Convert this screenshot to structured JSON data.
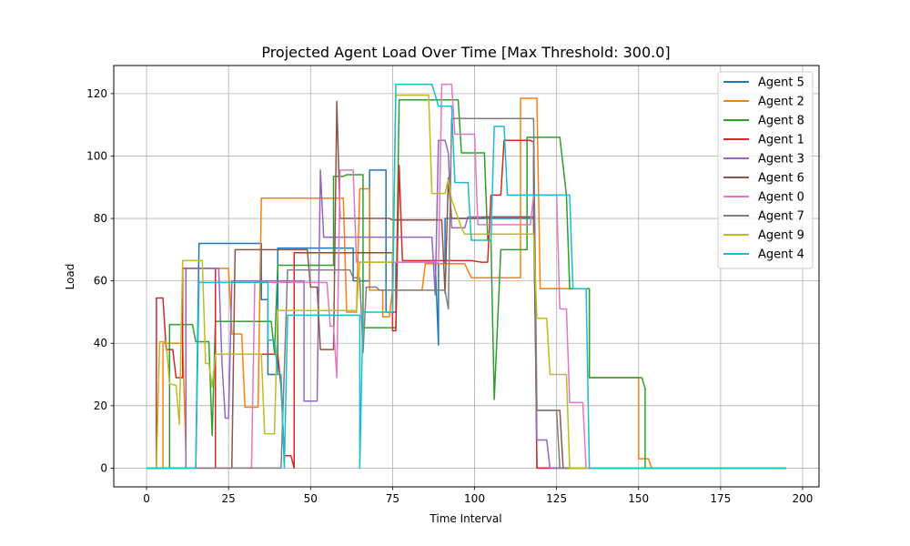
{
  "chart_data": {
    "type": "line",
    "title": "Projected Agent Load Over Time [Max Threshold: 300.0]",
    "xlabel": "Time Interval",
    "ylabel": "Load",
    "xlim": [
      -10,
      205
    ],
    "ylim": [
      -6,
      129
    ],
    "xticks": [
      0,
      25,
      50,
      75,
      100,
      125,
      150,
      175,
      200
    ],
    "yticks": [
      0,
      20,
      40,
      60,
      80,
      100,
      120
    ],
    "grid": true,
    "legend_position": "top-right",
    "series": [
      {
        "name": "Agent 5",
        "color": "#1f77b4",
        "points": [
          [
            0,
            0
          ],
          [
            15,
            0
          ],
          [
            16,
            72
          ],
          [
            35,
            72
          ],
          [
            35,
            54
          ],
          [
            37,
            54
          ],
          [
            37,
            30
          ],
          [
            40,
            30
          ],
          [
            40,
            70.5
          ],
          [
            63,
            70.5
          ],
          [
            63,
            60
          ],
          [
            68,
            60
          ],
          [
            68,
            95.5
          ],
          [
            73,
            95.5
          ],
          [
            73,
            50
          ],
          [
            76,
            50
          ],
          [
            76,
            66
          ],
          [
            88,
            66
          ],
          [
            89,
            39.5
          ],
          [
            89,
            65.5
          ],
          [
            91,
            65.5
          ],
          [
            91,
            80
          ],
          [
            118,
            80
          ],
          [
            118,
            100
          ],
          [
            119,
            0
          ],
          [
            195,
            0
          ]
        ]
      },
      {
        "name": "Agent 2",
        "color": "#ff7f0e",
        "points": [
          [
            0,
            0
          ],
          [
            5,
            0
          ],
          [
            5,
            40
          ],
          [
            11,
            40
          ],
          [
            12,
            5.5
          ],
          [
            12,
            64
          ],
          [
            25,
            64
          ],
          [
            26,
            43
          ],
          [
            29,
            43
          ],
          [
            30,
            19.5
          ],
          [
            34,
            19.5
          ],
          [
            35,
            86.5
          ],
          [
            60,
            86.5
          ],
          [
            61,
            50
          ],
          [
            64,
            50
          ],
          [
            65,
            89.5
          ],
          [
            68,
            89.5
          ],
          [
            68,
            57
          ],
          [
            72,
            57
          ],
          [
            72,
            48.5
          ],
          [
            74,
            48.5
          ],
          [
            75,
            57
          ],
          [
            84,
            57
          ],
          [
            85,
            65.5
          ],
          [
            97,
            65.5
          ],
          [
            99,
            61
          ],
          [
            114,
            61
          ],
          [
            114,
            118.5
          ],
          [
            119,
            118.5
          ],
          [
            120,
            57.5
          ],
          [
            128,
            57.5
          ],
          [
            129,
            57.5
          ],
          [
            135,
            57.5
          ],
          [
            135,
            29
          ],
          [
            150,
            29
          ],
          [
            150,
            3
          ],
          [
            153,
            3
          ],
          [
            154,
            0
          ],
          [
            195,
            0
          ]
        ]
      },
      {
        "name": "Agent 8",
        "color": "#2ca02c",
        "points": [
          [
            0,
            0
          ],
          [
            7,
            0
          ],
          [
            7,
            46
          ],
          [
            14,
            46
          ],
          [
            15,
            40.5
          ],
          [
            19,
            40.5
          ],
          [
            20,
            10.5
          ],
          [
            21,
            47
          ],
          [
            38,
            47
          ],
          [
            39,
            37
          ],
          [
            40,
            65
          ],
          [
            57,
            65
          ],
          [
            57,
            93.5
          ],
          [
            60,
            93.5
          ],
          [
            61,
            94
          ],
          [
            66,
            94
          ],
          [
            66,
            45
          ],
          [
            76,
            45
          ],
          [
            77,
            118
          ],
          [
            95,
            118
          ],
          [
            96,
            101
          ],
          [
            103,
            101
          ],
          [
            104,
            73
          ],
          [
            105,
            73
          ],
          [
            106,
            22
          ],
          [
            108,
            70
          ],
          [
            116,
            70
          ],
          [
            116,
            106
          ],
          [
            126,
            106
          ],
          [
            128,
            87.5
          ],
          [
            129,
            57.5
          ],
          [
            135,
            57.5
          ],
          [
            135,
            29
          ],
          [
            151,
            29
          ],
          [
            152,
            25.5
          ],
          [
            152,
            0
          ],
          [
            195,
            0
          ]
        ]
      },
      {
        "name": "Agent 1",
        "color": "#d62728",
        "points": [
          [
            0,
            0
          ],
          [
            3,
            0
          ],
          [
            3,
            54.5
          ],
          [
            5,
            54.5
          ],
          [
            6,
            38
          ],
          [
            8,
            38
          ],
          [
            9,
            29
          ],
          [
            11,
            29
          ],
          [
            11,
            64
          ],
          [
            21,
            64
          ],
          [
            21,
            0
          ],
          [
            21,
            36.5
          ],
          [
            40,
            36.5
          ],
          [
            41,
            26
          ],
          [
            42,
            4
          ],
          [
            44,
            4
          ],
          [
            45,
            0
          ],
          [
            45,
            69
          ],
          [
            75,
            69
          ],
          [
            75,
            44
          ],
          [
            76,
            44
          ],
          [
            77,
            97
          ],
          [
            78,
            66.5
          ],
          [
            99,
            66.5
          ],
          [
            102,
            66
          ],
          [
            104,
            66
          ],
          [
            105,
            87.5
          ],
          [
            108,
            87.5
          ],
          [
            109,
            105
          ],
          [
            117,
            105
          ],
          [
            118,
            104.5
          ],
          [
            119,
            0
          ],
          [
            195,
            0
          ]
        ]
      },
      {
        "name": "Agent 3",
        "color": "#9467bd",
        "points": [
          [
            0,
            0
          ],
          [
            12,
            0
          ],
          [
            12,
            64
          ],
          [
            22,
            64
          ],
          [
            23,
            33.5
          ],
          [
            24,
            16
          ],
          [
            25,
            16
          ],
          [
            26,
            60
          ],
          [
            48,
            60
          ],
          [
            48,
            21.5
          ],
          [
            52,
            21.5
          ],
          [
            53,
            95.5
          ],
          [
            54,
            74
          ],
          [
            87,
            74
          ],
          [
            88,
            55.5
          ],
          [
            89,
            105
          ],
          [
            91,
            105
          ],
          [
            92,
            101
          ],
          [
            93,
            77
          ],
          [
            97,
            77
          ],
          [
            98,
            80.5
          ],
          [
            118,
            80.5
          ],
          [
            119,
            9
          ],
          [
            122,
            9
          ],
          [
            123,
            0
          ],
          [
            195,
            0
          ]
        ]
      },
      {
        "name": "Agent 6",
        "color": "#8c564b",
        "points": [
          [
            0,
            0
          ],
          [
            26,
            0
          ],
          [
            27,
            70
          ],
          [
            49,
            70
          ],
          [
            50,
            58
          ],
          [
            52,
            58
          ],
          [
            53,
            38
          ],
          [
            57,
            38
          ],
          [
            58,
            117.5
          ],
          [
            59,
            80
          ],
          [
            74,
            80
          ],
          [
            75,
            79.5
          ],
          [
            90,
            79.5
          ],
          [
            91,
            56
          ],
          [
            92,
            93
          ],
          [
            93,
            80
          ],
          [
            97,
            80
          ],
          [
            98,
            80
          ],
          [
            102,
            80
          ],
          [
            103,
            80.5
          ],
          [
            118,
            80.5
          ],
          [
            119,
            18.5
          ],
          [
            126,
            18.5
          ],
          [
            127,
            0
          ],
          [
            195,
            0
          ]
        ]
      },
      {
        "name": "Agent 0",
        "color": "#e377c2",
        "points": [
          [
            0,
            0
          ],
          [
            32,
            0
          ],
          [
            33,
            59.5
          ],
          [
            55,
            59.5
          ],
          [
            56,
            45.5
          ],
          [
            57,
            45.5
          ],
          [
            58,
            29
          ],
          [
            59,
            95.5
          ],
          [
            63,
            95.5
          ],
          [
            64,
            66
          ],
          [
            88,
            66
          ],
          [
            89,
            65.5
          ],
          [
            90,
            123
          ],
          [
            93,
            123
          ],
          [
            94,
            107
          ],
          [
            100,
            107
          ],
          [
            101,
            78
          ],
          [
            117,
            78
          ],
          [
            118,
            87.5
          ],
          [
            125,
            87.5
          ],
          [
            126,
            51
          ],
          [
            128,
            51
          ],
          [
            129,
            21
          ],
          [
            133,
            21
          ],
          [
            134,
            0
          ],
          [
            195,
            0
          ]
        ]
      },
      {
        "name": "Agent 7",
        "color": "#7f7f7f",
        "points": [
          [
            0,
            0
          ],
          [
            41,
            0
          ],
          [
            43,
            63.5
          ],
          [
            62,
            63.5
          ],
          [
            63,
            61
          ],
          [
            65,
            61
          ],
          [
            66,
            37
          ],
          [
            67,
            58
          ],
          [
            70,
            58
          ],
          [
            71,
            57
          ],
          [
            88,
            57
          ],
          [
            91,
            57
          ],
          [
            92,
            51
          ],
          [
            93,
            112
          ],
          [
            118,
            112
          ],
          [
            119,
            18.5
          ],
          [
            125,
            18.5
          ],
          [
            126,
            0
          ],
          [
            195,
            0
          ]
        ]
      },
      {
        "name": "Agent 9",
        "color": "#bcbd22",
        "points": [
          [
            0,
            0
          ],
          [
            2,
            0
          ],
          [
            3,
            0
          ],
          [
            4,
            40.5
          ],
          [
            6,
            40.5
          ],
          [
            7,
            27
          ],
          [
            9,
            26.5
          ],
          [
            10,
            14
          ],
          [
            11,
            66.5
          ],
          [
            17,
            66.5
          ],
          [
            18,
            33.5
          ],
          [
            19,
            33.5
          ],
          [
            20,
            26
          ],
          [
            21,
            36.5
          ],
          [
            35,
            36.5
          ],
          [
            36,
            11
          ],
          [
            39,
            11
          ],
          [
            40,
            50.5
          ],
          [
            64,
            50.5
          ],
          [
            65,
            66
          ],
          [
            75,
            66
          ],
          [
            76,
            119.5
          ],
          [
            86,
            119.5
          ],
          [
            87,
            88
          ],
          [
            91,
            88
          ],
          [
            92,
            92.5
          ],
          [
            93,
            86
          ],
          [
            95,
            80
          ],
          [
            96,
            77
          ],
          [
            97,
            75
          ],
          [
            118,
            75
          ],
          [
            119,
            48
          ],
          [
            122,
            48
          ],
          [
            123,
            30
          ],
          [
            128,
            30
          ],
          [
            129,
            0
          ],
          [
            195,
            0
          ]
        ]
      },
      {
        "name": "Agent 4",
        "color": "#17becf",
        "points": [
          [
            0,
            0
          ],
          [
            15,
            0
          ],
          [
            16,
            59.5
          ],
          [
            37,
            59.5
          ],
          [
            37,
            41
          ],
          [
            39,
            41
          ],
          [
            40,
            30
          ],
          [
            41,
            30
          ],
          [
            42,
            0
          ],
          [
            43,
            49
          ],
          [
            65,
            49
          ],
          [
            65,
            0
          ],
          [
            66,
            50
          ],
          [
            75,
            50
          ],
          [
            76,
            123
          ],
          [
            87,
            123
          ],
          [
            89,
            116
          ],
          [
            93,
            116
          ],
          [
            94,
            91.5
          ],
          [
            98,
            91.5
          ],
          [
            99,
            73
          ],
          [
            105,
            73
          ],
          [
            106,
            109.5
          ],
          [
            109,
            109.5
          ],
          [
            110,
            87.5
          ],
          [
            129,
            87.5
          ],
          [
            130,
            57.5
          ],
          [
            134,
            57.5
          ],
          [
            135,
            0
          ],
          [
            195,
            0
          ]
        ]
      }
    ]
  }
}
